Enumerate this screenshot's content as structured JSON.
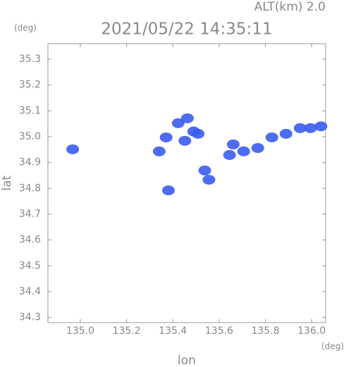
{
  "chart_data": {
    "type": "scatter",
    "title": "2021/05/22 14:35:11",
    "subtitle": "ALT(km) 2.0",
    "y_unit": "(deg)",
    "x_unit": "(deg)",
    "xlabel": "lon",
    "ylabel": "lat",
    "x": [
      134.967,
      135.423,
      135.463,
      135.509,
      135.371,
      135.341,
      135.452,
      135.538,
      135.556,
      135.645,
      135.661,
      135.706,
      135.767,
      135.828,
      135.889,
      135.95,
      135.995,
      136.04,
      135.381,
      135.49
    ],
    "values": [
      34.951,
      35.052,
      35.071,
      35.011,
      34.997,
      34.943,
      34.984,
      34.869,
      34.833,
      34.929,
      34.97,
      34.943,
      34.956,
      34.997,
      35.011,
      35.033,
      35.033,
      35.04,
      34.792,
      35.02
    ],
    "color": "#3a5cf0",
    "xlim": [
      134.86,
      136.06
    ],
    "ylim": [
      34.28,
      35.36
    ],
    "xticks": [
      {
        "value": 135.0,
        "label": "135.0"
      },
      135.2,
      135.4,
      135.6,
      135.8,
      {
        "value": 136.0,
        "label": "136.0"
      }
    ],
    "yticks": [
      34.3,
      34.4,
      34.5,
      34.6,
      34.7,
      34.8,
      34.9,
      {
        "value": 35.0,
        "label": "35.0"
      },
      35.1,
      35.2,
      35.3
    ]
  }
}
